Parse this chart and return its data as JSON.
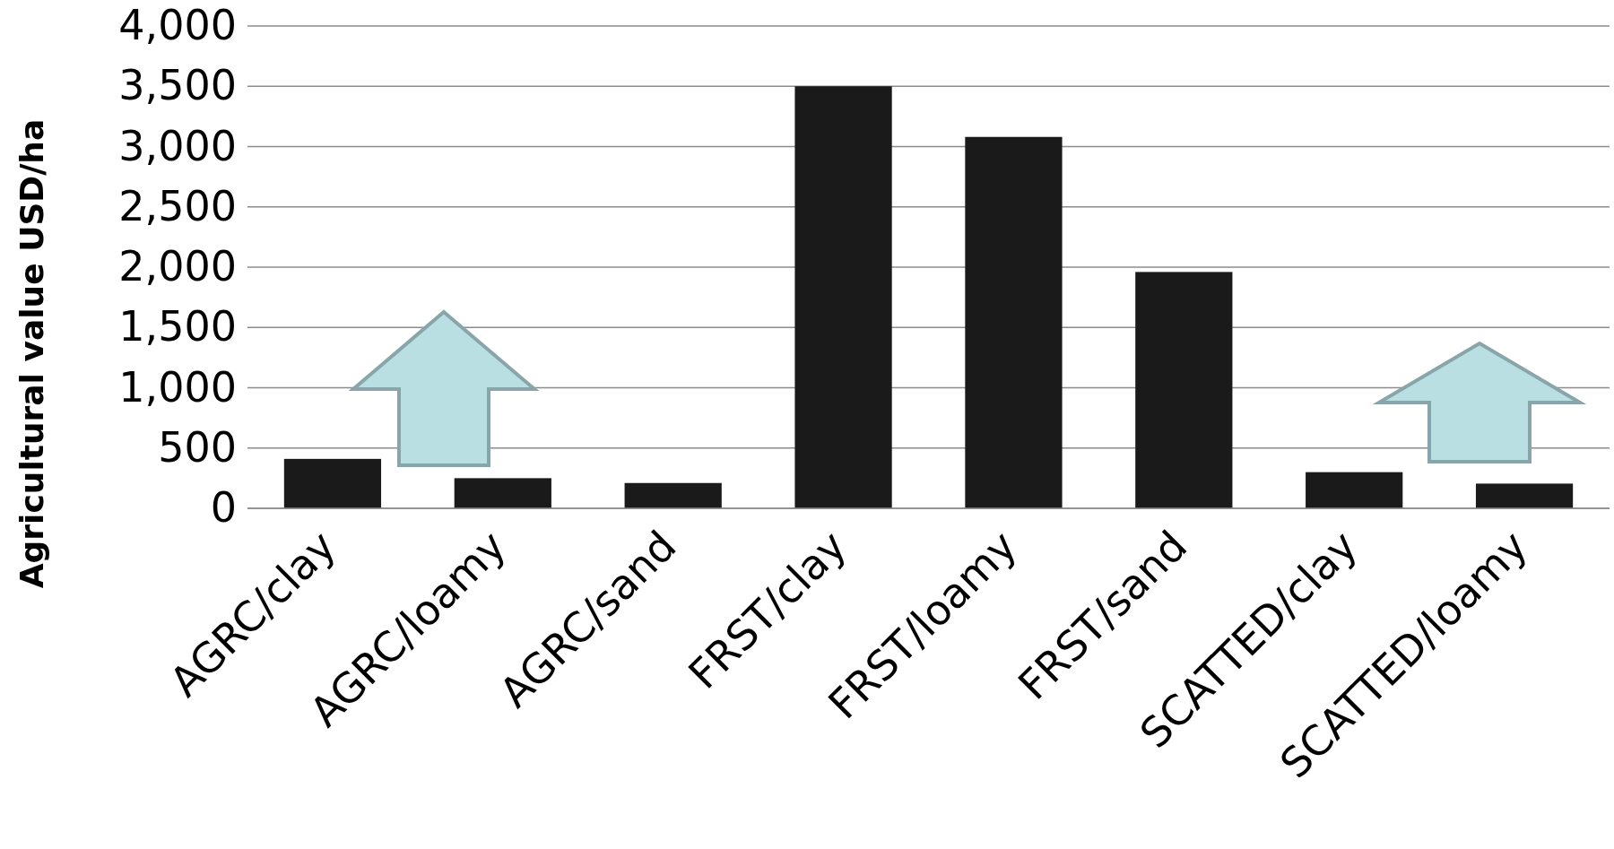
{
  "chart_data": {
    "type": "bar",
    "ylabel": "Agricultural value USD/ha",
    "categories": [
      "AGRC/clay",
      "AGRC/loamy",
      "AGRC/sand",
      "FRST/clay",
      "FRST/loamy",
      "FRST/sand",
      "SCATTED/clay",
      "SCATTED/loamy"
    ],
    "values": [
      410,
      250,
      210,
      3500,
      3080,
      1960,
      300,
      205
    ],
    "color": "#1a1a1a",
    "ylim": [
      0,
      4000
    ],
    "yticks": [
      {
        "value": 0,
        "label": "0"
      },
      {
        "value": 500,
        "label": "500"
      },
      {
        "value": 1000,
        "label": "1,000"
      },
      {
        "value": 1500,
        "label": "1,500"
      },
      {
        "value": 2000,
        "label": "2,000"
      },
      {
        "value": 2500,
        "label": "2,500"
      },
      {
        "value": 3000,
        "label": "3,000"
      },
      {
        "value": 3500,
        "label": "3,500"
      },
      {
        "value": 4000,
        "label": "4,000"
      }
    ],
    "grid": "y"
  }
}
